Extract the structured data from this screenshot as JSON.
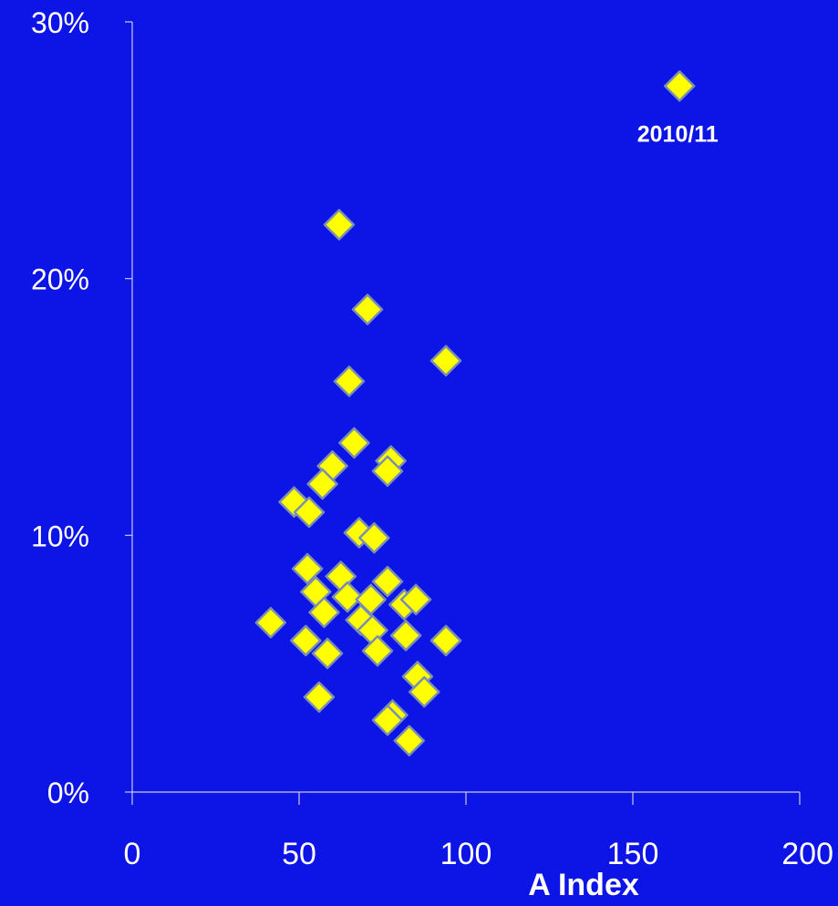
{
  "colors": {
    "background": "#0d14e6",
    "axis": "#c9cbe8",
    "tick_label": "#ffffff",
    "marker_fill": "#ffff00",
    "marker_stroke": "#7a8fb0"
  },
  "chart_data": {
    "type": "scatter",
    "title": "",
    "xlabel": "A Index",
    "ylabel": "",
    "xlim": [
      0,
      200
    ],
    "ylim": [
      0,
      30
    ],
    "x_ticks": [
      0,
      50,
      100,
      150,
      200
    ],
    "y_ticks": [
      0,
      10,
      20,
      30
    ],
    "x_tick_labels": [
      "0",
      "50",
      "100",
      "150",
      "200"
    ],
    "y_tick_labels": [
      "0%",
      "10%",
      "20%",
      "30%"
    ],
    "y_unit": "%",
    "grid": false,
    "legend": "none",
    "marker": "diamond",
    "points": [
      {
        "x": 164,
        "y": 27.5
      },
      {
        "x": 62,
        "y": 22.1
      },
      {
        "x": 70.5,
        "y": 18.8
      },
      {
        "x": 94,
        "y": 16.8
      },
      {
        "x": 65,
        "y": 16.0
      },
      {
        "x": 66.5,
        "y": 13.6
      },
      {
        "x": 60,
        "y": 12.7
      },
      {
        "x": 77.5,
        "y": 12.9
      },
      {
        "x": 76.5,
        "y": 12.5
      },
      {
        "x": 57,
        "y": 12.0
      },
      {
        "x": 48.5,
        "y": 11.3
      },
      {
        "x": 53,
        "y": 10.9
      },
      {
        "x": 68,
        "y": 10.1
      },
      {
        "x": 72.5,
        "y": 9.9
      },
      {
        "x": 52.5,
        "y": 8.7
      },
      {
        "x": 62.5,
        "y": 8.4
      },
      {
        "x": 76.5,
        "y": 8.2
      },
      {
        "x": 55,
        "y": 7.8
      },
      {
        "x": 64.5,
        "y": 7.6
      },
      {
        "x": 71.5,
        "y": 7.5
      },
      {
        "x": 81.5,
        "y": 7.3
      },
      {
        "x": 85,
        "y": 7.5
      },
      {
        "x": 57.5,
        "y": 7.0
      },
      {
        "x": 68.5,
        "y": 6.7
      },
      {
        "x": 41.5,
        "y": 6.6
      },
      {
        "x": 72,
        "y": 6.3
      },
      {
        "x": 82,
        "y": 6.1
      },
      {
        "x": 52,
        "y": 5.9
      },
      {
        "x": 94,
        "y": 5.9
      },
      {
        "x": 73.5,
        "y": 5.5
      },
      {
        "x": 58.5,
        "y": 5.4
      },
      {
        "x": 85.5,
        "y": 4.5
      },
      {
        "x": 87.5,
        "y": 3.9
      },
      {
        "x": 56,
        "y": 3.7
      },
      {
        "x": 78,
        "y": 3.0
      },
      {
        "x": 76.5,
        "y": 2.8
      },
      {
        "x": 83,
        "y": 2.0
      }
    ],
    "annotations": [
      {
        "text": "2010/11",
        "x": 164,
        "y": 27.5
      }
    ]
  }
}
